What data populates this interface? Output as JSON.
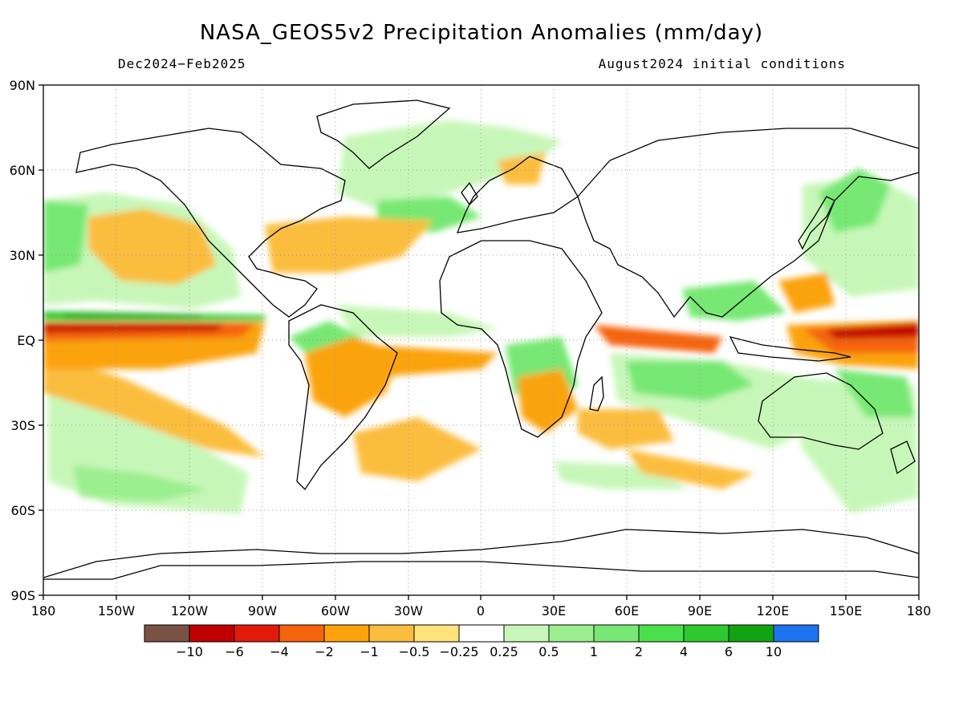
{
  "title": "NASA_GEOS5v2 Precipitation Anomalies (mm/day)",
  "subtitle_left": "Dec2024−Feb2025",
  "subtitle_right": "August2024 initial conditions",
  "lat_ticks": [
    "90N",
    "60N",
    "30N",
    "EQ",
    "30S",
    "60S",
    "90S"
  ],
  "lon_ticks": [
    "180",
    "150W",
    "120W",
    "90W",
    "60W",
    "30W",
    "0",
    "30E",
    "60E",
    "90E",
    "120E",
    "150E",
    "180"
  ],
  "colorbar": {
    "colors": [
      "#7a5244",
      "#c00000",
      "#e31a0b",
      "#f5640d",
      "#fba30c",
      "#fbbd3e",
      "#fee37a",
      "#ffffff",
      "#c7f7b8",
      "#9cef8f",
      "#77e873",
      "#4be04b",
      "#2ec92e",
      "#12a312",
      "#1e73f0"
    ],
    "labels": [
      "−10",
      "−6",
      "−4",
      "−2",
      "−1",
      "−0.5",
      "−0.25",
      "0.25",
      "0.5",
      "1",
      "2",
      "4",
      "6",
      "10"
    ]
  },
  "legend_colors": {
    "dry_strong": "#c00000",
    "dry_mid": "#f5640d",
    "dry_light": "#fba30c",
    "dry_faint": "#fee37a",
    "wet_faint": "#c7f7b8",
    "wet_light": "#77e873",
    "wet_mid": "#4be04b",
    "wet_strong": "#12a312"
  }
}
